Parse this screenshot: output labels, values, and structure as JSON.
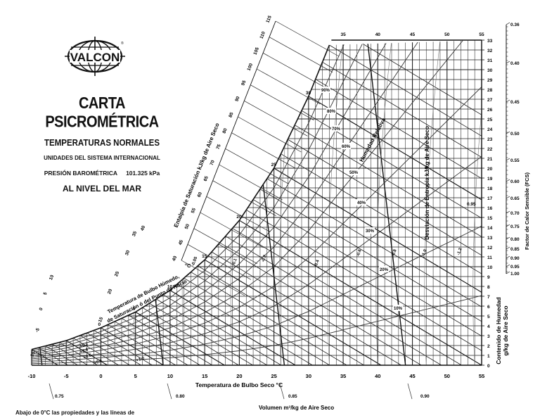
{
  "logo": {
    "text": "VALCON",
    "registered": "®"
  },
  "title": {
    "main": "CARTA PSICROMÉTRICA",
    "subtitle": "TEMPERATURAS NORMALES",
    "units": "UNIDADES DEL SISTEMA INTERNACIONAL",
    "pressure_label": "PRESIÓN BAROMÉTRICA",
    "pressure_value": "101.325 kPa",
    "altitude": "AL NIVEL DEL MAR"
  },
  "footnote": "Abajo de 0°C las propiedades y las líneas de",
  "colors": {
    "ink": "#111111",
    "grid": "#222222",
    "background": "#ffffff"
  },
  "chart_data": {
    "type": "line",
    "title": "CARTA PSICROMÉTRICA",
    "subtitle": "Temperaturas normales — Unidades del Sistema Internacional — Presión barométrica 101.325 kPa — Al nivel del mar",
    "xlabel": "Temperatura de Bulbo Seco °C",
    "ylabel": "Contenido de Humedad g/kg de Aire Seco",
    "xlim": [
      -10,
      55
    ],
    "ylim": [
      0,
      33
    ],
    "grid": true,
    "x_ticks": [
      -10,
      -5,
      0,
      5,
      10,
      15,
      20,
      25,
      30,
      35,
      40,
      45,
      50,
      55
    ],
    "top_x_ticks": [
      35,
      40,
      45,
      50,
      55
    ],
    "y_ticks": [
      0,
      1,
      2,
      3,
      4,
      5,
      6,
      7,
      8,
      9,
      10,
      11,
      12,
      13,
      14,
      15,
      16,
      17,
      18,
      19,
      20,
      21,
      22,
      23,
      24,
      25,
      26,
      27,
      28,
      29,
      30,
      31,
      32,
      33
    ],
    "saturation_curve": {
      "name": "Temperatura de Bulbo Húmedo, de Saturación ó del Punto de Rocío °C",
      "x": [
        -10,
        -5,
        0,
        5,
        10,
        15,
        20,
        25,
        30,
        33
      ],
      "y": [
        1.6,
        2.5,
        3.8,
        5.4,
        7.6,
        10.7,
        14.7,
        20.0,
        27.3,
        32.5
      ]
    },
    "relative_humidity": {
      "label": "Humedad Relativa",
      "curves": [
        "90%",
        "80%",
        "70%",
        "60%",
        "50%",
        "40%",
        "30%",
        "20%",
        "10%"
      ]
    },
    "saturation_enthalpy": {
      "label": "Entalpía de Saturación  kJ/kg de Aire Seco",
      "ticks": [
        40,
        45,
        50,
        55,
        60,
        65,
        70,
        75,
        80,
        85,
        90,
        95,
        100,
        105,
        110,
        115
      ]
    },
    "wet_bulb_scale": {
      "label": "Temperatura de Bulbo Húmedo de Saturación ó del Punto de Rocío °C",
      "ticks": [
        -10,
        -5,
        0,
        5,
        10,
        15,
        20,
        25,
        30,
        35,
        40
      ]
    },
    "saturation_temp_labels": [
      0,
      5,
      10,
      15,
      20,
      25,
      30
    ],
    "specific_volume": {
      "label": "Volumen  m³/kg de Aire Seco",
      "ticks": [
        "0.75",
        "0.80",
        "0.85",
        "0.90"
      ]
    },
    "enthalpy_deviation": {
      "label": "Desviación de Entropía  kJ/kg de Aire Seco",
      "values": [
        "+0.2",
        "+0.4",
        "+0.6",
        "+0.8",
        "+1.0",
        "-0.05",
        "-0.1",
        "-0.2",
        "-0.4",
        "-0.6",
        "-0.8",
        "-1.0",
        "-1.2"
      ]
    },
    "sensible_heat_factor": {
      "label": "Factor de Calor Sensible (FCS)",
      "ticks": [
        "0.35",
        "0.40",
        "0.45",
        "0.50",
        "0.55",
        "0.60",
        "0.65",
        "0.70",
        "0.75",
        "0.80",
        "0.85",
        "0.90",
        "0.95",
        "1.00"
      ],
      "inner_label": "0.95"
    }
  }
}
